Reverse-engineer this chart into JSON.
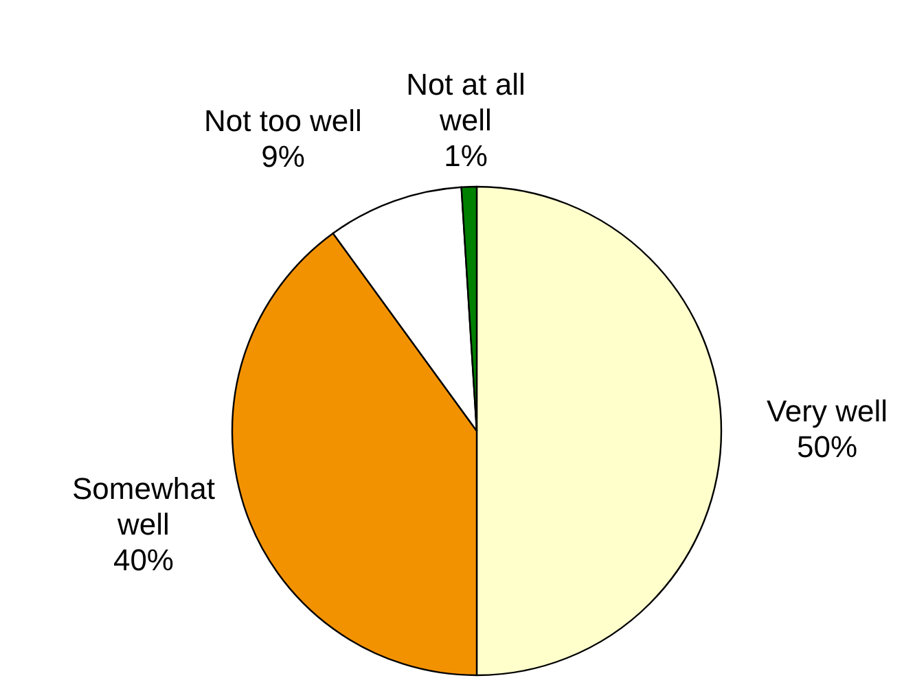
{
  "chart_data": {
    "type": "pie",
    "categories": [
      "Very well",
      "Somewhat well",
      "Not too well",
      "Not at all well"
    ],
    "values": [
      50,
      40,
      9,
      1
    ],
    "colors": [
      "#ffffcc",
      "#f39200",
      "#ffffff",
      "#008000"
    ],
    "value_labels": [
      "50%",
      "40%",
      "9%",
      "1%"
    ]
  }
}
